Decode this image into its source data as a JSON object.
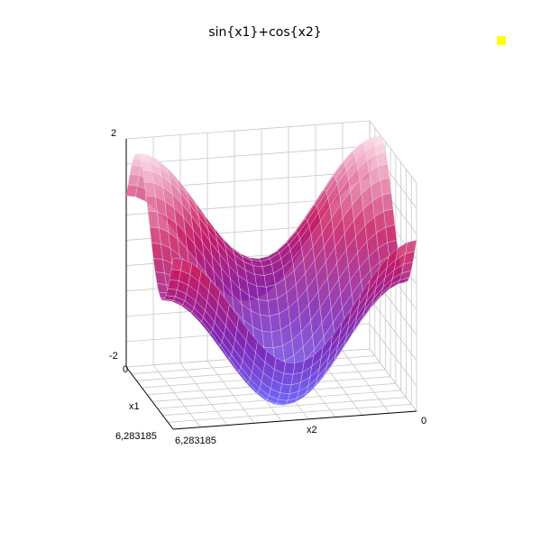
{
  "chart_data": {
    "type": "surface3d",
    "title": "sin{x1}+cos{x2}",
    "function": "sin(x1)+cos(x2)",
    "xlabel": "x1",
    "ylabel": "x2",
    "x1_tick_labels": [
      "0",
      "6,283185"
    ],
    "x2_tick_labels": [
      "6,283185",
      "0"
    ],
    "z_tick_labels": [
      "2",
      "-2"
    ],
    "x1_range": [
      0,
      6.283185
    ],
    "x2_range": [
      0,
      6.283185
    ],
    "z_range": [
      -2,
      2
    ],
    "grid": true,
    "colormap": [
      "#6a6aff",
      "#7a1fb3",
      "#c8155c",
      "#ffe0ea"
    ],
    "legend_marker_color": "#ffff00"
  }
}
